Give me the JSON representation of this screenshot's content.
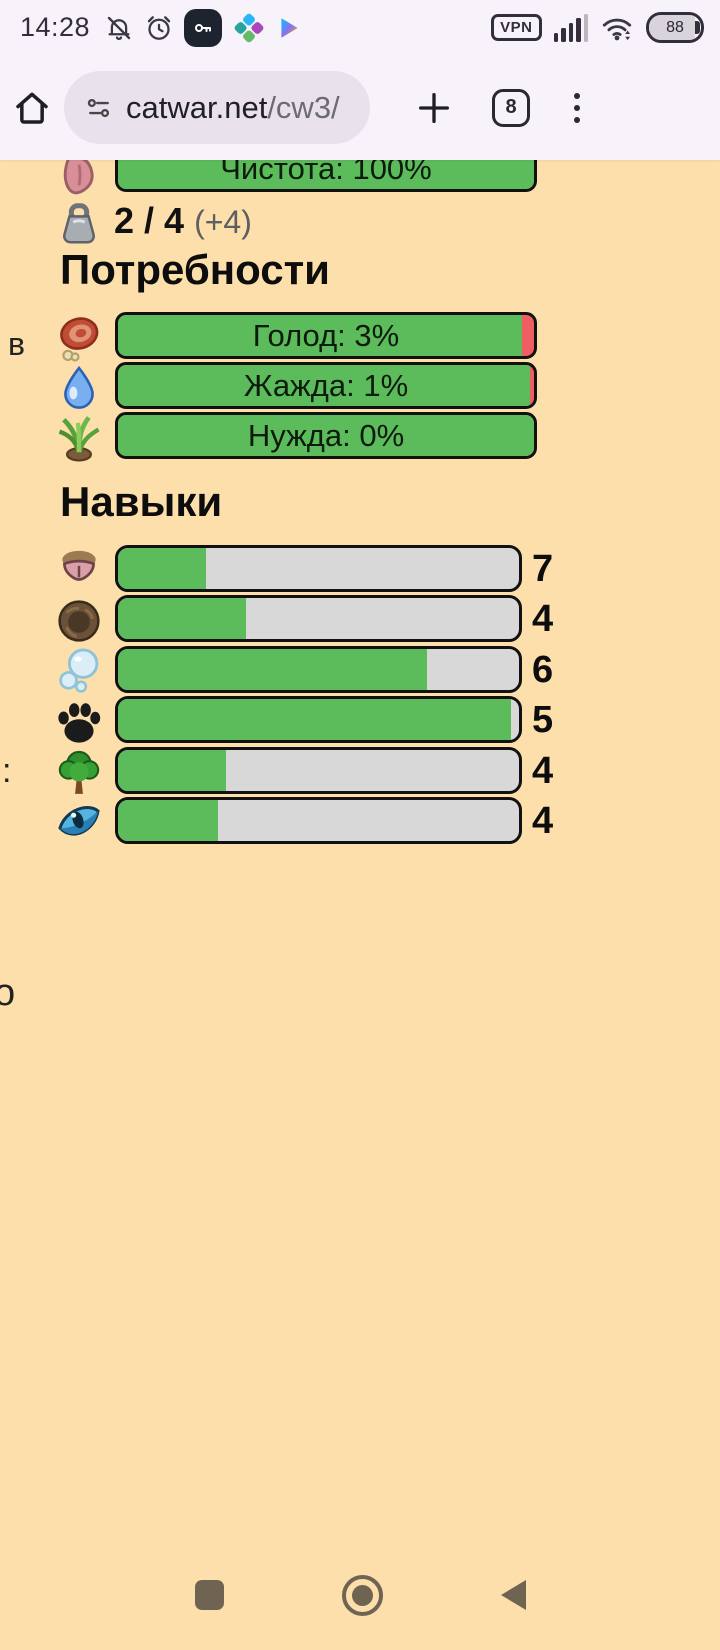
{
  "status_bar": {
    "time": "14:28",
    "vpn_label": "VPN",
    "battery_percent": "88",
    "icons": [
      "notifications-off-icon",
      "alarm-icon",
      "key-app-icon",
      "colorful-app-icon",
      "play-store-icon",
      "vpn-badge",
      "signal-bars-icon",
      "wifi-arrows-icon",
      "battery-icon"
    ]
  },
  "browser": {
    "url_domain": "catwar.net",
    "url_path": "/cw3/",
    "tab_count": "8",
    "controls": [
      "home-icon",
      "site-settings-icon",
      "new-tab-icon",
      "tab-switcher",
      "menu-icon"
    ]
  },
  "page": {
    "colors": {
      "page_bg": "#fddfab",
      "bar_green": "#5cbb5a",
      "bar_red": "#ef5e62",
      "bar_track": "#d8d8d8",
      "nav_icon": "#6f6452"
    },
    "cleanliness": {
      "icon": "tongue-icon",
      "label": "Чистота: 100%",
      "green_percent": 100
    },
    "weight": {
      "icon": "weight-icon",
      "value": "2 / 4",
      "bonus": "(+4)"
    },
    "needs": {
      "heading": "Потребности",
      "items": [
        {
          "icon": "meat-icon",
          "label": "Голод: 3%",
          "green_percent": 97
        },
        {
          "icon": "water-drop-icon",
          "label": "Жажда: 1%",
          "green_percent": 99
        },
        {
          "icon": "plant-icon",
          "label": "Нужда: 0%",
          "green_percent": 100
        }
      ]
    },
    "skills": {
      "heading": "Навыки",
      "items": [
        {
          "icon": "nose-icon",
          "level": "7",
          "progress_percent": 22
        },
        {
          "icon": "ear-icon",
          "level": "4",
          "progress_percent": 32
        },
        {
          "icon": "bubbles-icon",
          "level": "6",
          "progress_percent": 77
        },
        {
          "icon": "paw-icon",
          "level": "5",
          "progress_percent": 98
        },
        {
          "icon": "tree-icon",
          "level": "4",
          "progress_percent": 27
        },
        {
          "icon": "eye-icon",
          "level": "4",
          "progress_percent": 25
        }
      ]
    },
    "stray_text": [
      "в",
      ":",
      "о"
    ]
  }
}
